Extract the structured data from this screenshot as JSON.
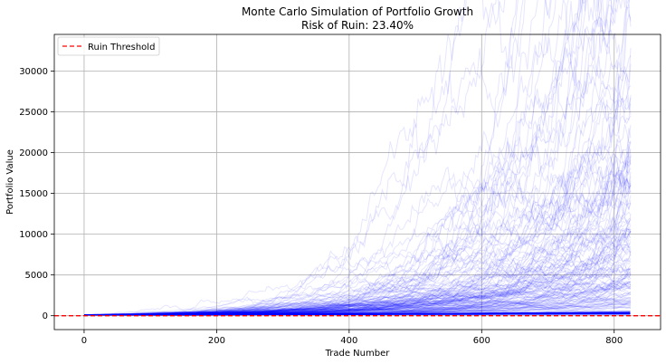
{
  "chart_data": {
    "type": "line",
    "title": "Monte Carlo Simulation of Portfolio Growth",
    "subtitle": "Risk of Ruin: 23.40%",
    "xlabel": "Trade Number",
    "ylabel": "Portfolio Value",
    "xlim": [
      -45,
      870
    ],
    "ylim": [
      -1700,
      34500
    ],
    "x_ticks": [
      0,
      200,
      400,
      600,
      800
    ],
    "y_ticks": [
      0,
      5000,
      10000,
      15000,
      20000,
      25000,
      30000
    ],
    "grid": true,
    "legend_position": "top-left",
    "simulation": {
      "num_trades": 828,
      "start_value": 100,
      "paths_drawn": 150,
      "line_color": "#0000ff",
      "line_alpha": 0.1
    },
    "threshold": {
      "name": "Ruin Threshold",
      "value": 0,
      "color": "#ff0000",
      "style": "dashed"
    },
    "peak_values": [
      {
        "x": 770,
        "y": 29000
      },
      {
        "x": 810,
        "y": 33000
      },
      {
        "x": 826,
        "y": 28500
      },
      {
        "x": 826,
        "y": 23500
      }
    ]
  }
}
